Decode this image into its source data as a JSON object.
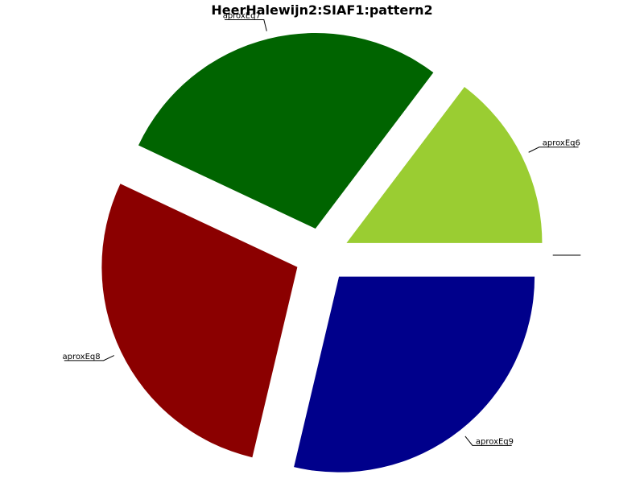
{
  "chart_data": {
    "type": "pie",
    "title": "HeerHalewijn2:SIAF1:pattern2",
    "labels": [
      "aproxEq6",
      "aproxEq7",
      "aproxEq8",
      "aproxEq9",
      ""
    ],
    "values": [
      14.7,
      28.3,
      28.3,
      28.7,
      0
    ],
    "colors": [
      "#9acd32",
      "#006400",
      "#8b0000",
      "#00008b",
      "#ffffff"
    ],
    "exploded": true,
    "legend": false
  }
}
